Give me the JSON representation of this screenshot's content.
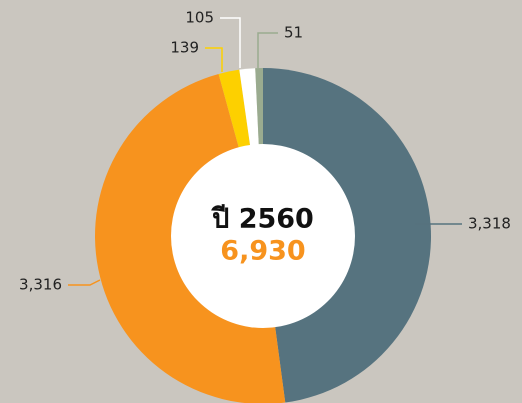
{
  "chart_data": {
    "type": "donut",
    "center_title": "ปี 2560",
    "total": {
      "value": 6930,
      "label": "6,930"
    },
    "categories": [
      null,
      null,
      null,
      null,
      null
    ],
    "values": [
      3318,
      3316,
      139,
      105,
      51
    ],
    "value_labels": [
      "3,318",
      "3,316",
      "139",
      "105",
      "51"
    ],
    "colors": [
      "#56737f",
      "#f7931e",
      "#fdd000",
      "#ffffff",
      "#9aab8f"
    ]
  }
}
